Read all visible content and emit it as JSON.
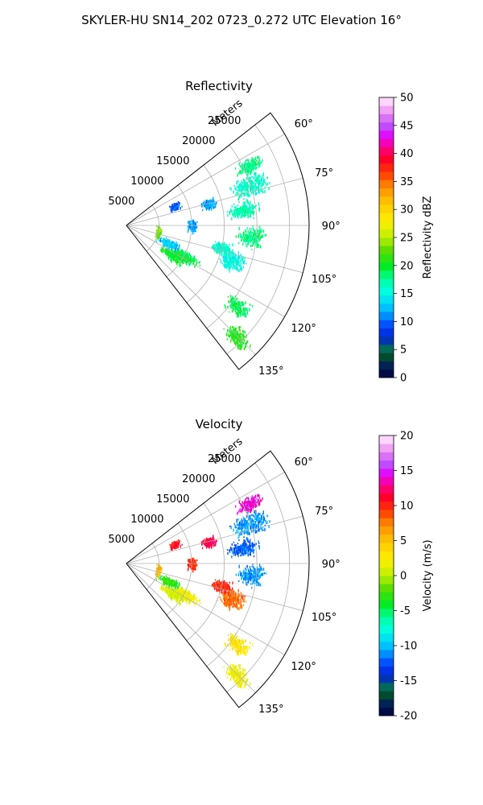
{
  "figure": {
    "title": "SKYLER-HU  SN14_202  0723_0.272 UTC Elevation 16°"
  },
  "chart_data": [
    {
      "type": "polar-sector",
      "title": "Reflectivity",
      "radial_axis_label": "Meters",
      "radial_ticks": [
        "5000",
        "10000",
        "15000",
        "20000",
        "25000"
      ],
      "radial_tick_values": [
        5000,
        10000,
        15000,
        20000,
        25000
      ],
      "range_max_m": 28000,
      "angular_ticks": [
        "60°",
        "75°",
        "90°",
        "105°",
        "120°",
        "135°"
      ],
      "angular_tick_values": [
        60,
        75,
        90,
        105,
        120,
        135
      ],
      "azimuth_range_deg": [
        52,
        142
      ],
      "grid": true,
      "colorbar": {
        "label": "Reflectivity dBZ",
        "ticks": [
          "0",
          "5",
          "10",
          "15",
          "20",
          "25",
          "30",
          "35",
          "40",
          "45",
          "50"
        ],
        "range": [
          0,
          50
        ],
        "colormap": "pyart_HomeyerRainbow-like (navy→blue→cyan→green→yellow→orange→red→magenta→pink)"
      },
      "clusters": [
        {
          "az": 64,
          "r": 21000,
          "spread_az": 4,
          "spread_r": 2500,
          "value": 18
        },
        {
          "az": 72,
          "r": 20000,
          "spread_az": 6,
          "spread_r": 3500,
          "value": 16
        },
        {
          "az": 82,
          "r": 18000,
          "spread_az": 5,
          "spread_r": 3000,
          "value": 17
        },
        {
          "az": 95,
          "r": 19000,
          "spread_az": 6,
          "spread_r": 2500,
          "value": 18
        },
        {
          "az": 108,
          "r": 17000,
          "spread_az": 6,
          "spread_r": 2500,
          "value": 15
        },
        {
          "az": 118,
          "r": 10000,
          "spread_az": 6,
          "spread_r": 3000,
          "value": 19
        },
        {
          "az": 122,
          "r": 8500,
          "spread_az": 7,
          "spread_r": 2500,
          "value": 20
        },
        {
          "az": 112,
          "r": 7000,
          "spread_az": 6,
          "spread_r": 2000,
          "value": 13
        },
        {
          "az": 103,
          "r": 15000,
          "spread_az": 4,
          "spread_r": 2000,
          "value": 16
        },
        {
          "az": 75,
          "r": 13000,
          "spread_az": 4,
          "spread_r": 1500,
          "value": 12
        },
        {
          "az": 126,
          "r": 21000,
          "spread_az": 4,
          "spread_r": 2500,
          "value": 19
        },
        {
          "az": 135,
          "r": 24000,
          "spread_az": 4,
          "spread_r": 2500,
          "value": 21
        },
        {
          "az": 100,
          "r": 5000,
          "spread_az": 12,
          "spread_r": 500,
          "value": 23
        },
        {
          "az": 90,
          "r": 10000,
          "spread_az": 6,
          "spread_r": 1000,
          "value": 12
        },
        {
          "az": 68,
          "r": 8000,
          "spread_az": 4,
          "spread_r": 1000,
          "value": 10
        }
      ]
    },
    {
      "type": "polar-sector",
      "title": "Velocity",
      "radial_axis_label": "Meters",
      "radial_ticks": [
        "5000",
        "10000",
        "15000",
        "20000",
        "25000"
      ],
      "radial_tick_values": [
        5000,
        10000,
        15000,
        20000,
        25000
      ],
      "range_max_m": 28000,
      "angular_ticks": [
        "60°",
        "75°",
        "90°",
        "105°",
        "120°",
        "135°"
      ],
      "angular_tick_values": [
        60,
        75,
        90,
        105,
        120,
        135
      ],
      "azimuth_range_deg": [
        52,
        142
      ],
      "grid": true,
      "colorbar": {
        "label": "Velocity (m/s)",
        "ticks": [
          "-20",
          "-15",
          "-10",
          "-5",
          "0",
          "5",
          "10",
          "15",
          "20"
        ],
        "range": [
          -20,
          20
        ],
        "colormap": "pyart_BuDRd18-like (navy→blue→cyan→green→yellow→orange→red→magenta→pink)"
      },
      "clusters": [
        {
          "az": 64,
          "r": 21000,
          "spread_az": 4,
          "spread_r": 2500,
          "value": 14
        },
        {
          "az": 72,
          "r": 20000,
          "spread_az": 6,
          "spread_r": 3500,
          "value": -11
        },
        {
          "az": 82,
          "r": 18000,
          "spread_az": 5,
          "spread_r": 3000,
          "value": -12
        },
        {
          "az": 95,
          "r": 19000,
          "spread_az": 6,
          "spread_r": 2500,
          "value": -11
        },
        {
          "az": 108,
          "r": 17000,
          "spread_az": 6,
          "spread_r": 2500,
          "value": 8
        },
        {
          "az": 118,
          "r": 10000,
          "spread_az": 6,
          "spread_r": 3000,
          "value": 2
        },
        {
          "az": 122,
          "r": 8500,
          "spread_az": 7,
          "spread_r": 2500,
          "value": 1
        },
        {
          "az": 112,
          "r": 7000,
          "spread_az": 6,
          "spread_r": 2000,
          "value": -3
        },
        {
          "az": 103,
          "r": 15000,
          "spread_az": 4,
          "spread_r": 2000,
          "value": 10
        },
        {
          "az": 75,
          "r": 13000,
          "spread_az": 4,
          "spread_r": 1500,
          "value": 12
        },
        {
          "az": 126,
          "r": 21000,
          "spread_az": 4,
          "spread_r": 2500,
          "value": 3
        },
        {
          "az": 135,
          "r": 24000,
          "spread_az": 4,
          "spread_r": 2500,
          "value": 2
        },
        {
          "az": 100,
          "r": 5000,
          "spread_az": 12,
          "spread_r": 500,
          "value": 5
        },
        {
          "az": 90,
          "r": 10000,
          "spread_az": 6,
          "spread_r": 1000,
          "value": 10
        },
        {
          "az": 68,
          "r": 8000,
          "spread_az": 4,
          "spread_r": 1000,
          "value": 11
        }
      ]
    }
  ]
}
